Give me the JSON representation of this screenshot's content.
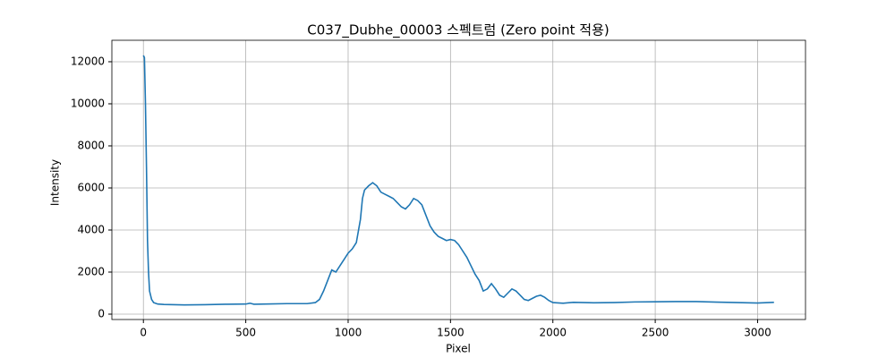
{
  "chart_data": {
    "type": "line",
    "title": "C037_Dubhe_00003 스펙트럼 (Zero point 적용)",
    "x_label": "Pixel",
    "y_label": "Intensity",
    "color": "#1f77b4",
    "grid": true,
    "xlim": [
      -154,
      3234
    ],
    "ylim": [
      -255,
      13020
    ],
    "xticks": [
      0,
      500,
      1000,
      1500,
      2000,
      2500,
      3000
    ],
    "yticks": [
      0,
      2000,
      4000,
      6000,
      8000,
      10000,
      12000
    ],
    "x": [
      0,
      5,
      10,
      15,
      20,
      25,
      30,
      40,
      50,
      70,
      100,
      150,
      200,
      300,
      400,
      500,
      520,
      540,
      600,
      700,
      800,
      840,
      860,
      880,
      900,
      920,
      940,
      960,
      980,
      1000,
      1020,
      1040,
      1060,
      1070,
      1080,
      1100,
      1120,
      1140,
      1160,
      1180,
      1200,
      1220,
      1240,
      1260,
      1280,
      1300,
      1320,
      1340,
      1360,
      1380,
      1400,
      1420,
      1440,
      1460,
      1480,
      1500,
      1520,
      1540,
      1560,
      1580,
      1600,
      1620,
      1640,
      1660,
      1680,
      1700,
      1720,
      1740,
      1760,
      1780,
      1800,
      1820,
      1840,
      1860,
      1880,
      1900,
      1920,
      1940,
      1960,
      1980,
      2000,
      2050,
      2100,
      2200,
      2300,
      2400,
      2500,
      2600,
      2700,
      2800,
      2900,
      3000,
      3080
    ],
    "values": [
      12300,
      12200,
      10000,
      7000,
      3500,
      2000,
      1100,
      700,
      550,
      480,
      460,
      450,
      440,
      450,
      470,
      480,
      520,
      470,
      480,
      500,
      500,
      550,
      700,
      1100,
      1600,
      2100,
      2000,
      2300,
      2600,
      2900,
      3100,
      3400,
      4500,
      5500,
      5900,
      6100,
      6250,
      6100,
      5800,
      5700,
      5600,
      5500,
      5300,
      5100,
      5000,
      5200,
      5500,
      5400,
      5200,
      4700,
      4200,
      3900,
      3700,
      3600,
      3500,
      3550,
      3500,
      3300,
      3000,
      2700,
      2300,
      1900,
      1600,
      1100,
      1200,
      1450,
      1200,
      900,
      800,
      1000,
      1200,
      1100,
      900,
      700,
      650,
      750,
      850,
      900,
      800,
      650,
      550,
      520,
      560,
      540,
      550,
      580,
      590,
      600,
      600,
      570,
      550,
      530,
      560
    ]
  }
}
